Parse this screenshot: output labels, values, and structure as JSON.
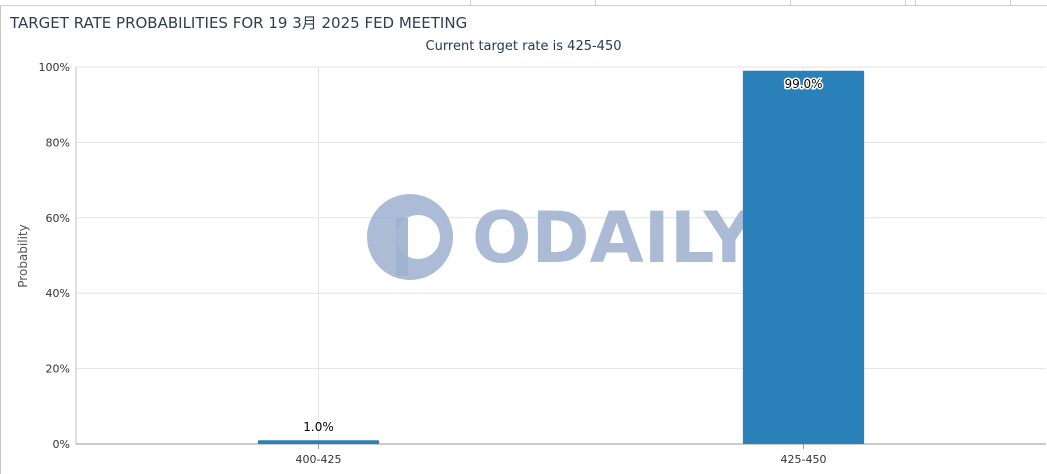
{
  "chart_data": {
    "type": "bar",
    "title": "TARGET RATE PROBABILITIES FOR 19 3月 2025 FED MEETING",
    "subtitle": "Current target rate is 425-450",
    "categories": [
      "400-425",
      "425-450"
    ],
    "series": [
      {
        "values": [
          1.0,
          99.0
        ],
        "data_labels": [
          "1.0%",
          "99.0%"
        ]
      }
    ],
    "ylabel": "Probability",
    "xlabel": "",
    "ylim": [
      0,
      100
    ],
    "yticks": [
      "0%",
      "20%",
      "40%",
      "60%",
      "80%",
      "100%"
    ],
    "grid": true,
    "bar_color": "#2a80b9"
  },
  "watermark": {
    "text": "ODAILY",
    "color": "#9db0cf"
  }
}
